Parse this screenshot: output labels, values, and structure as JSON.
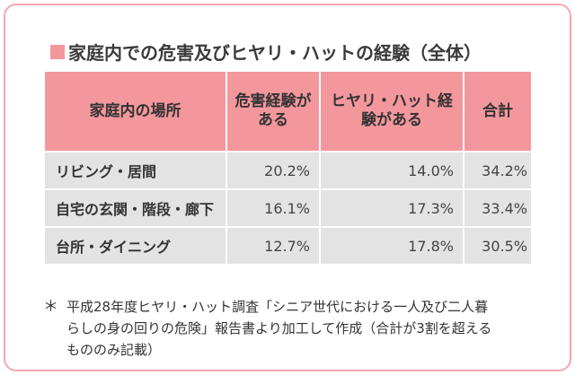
{
  "title": "家庭内での危害及びヒヤリ・ハットの経験（全体）",
  "colors": {
    "accent": "#f4979d",
    "row_bg": "#e3e3e3",
    "frame_border": "#f2a9ae"
  },
  "table": {
    "headers": [
      "家庭内の場所",
      "危害経験がある",
      "ヒヤリ・ハット経験がある",
      "合計"
    ],
    "rows": [
      {
        "place": "リビング・居間",
        "harm": "20.2%",
        "hiyari": "14.0%",
        "total": "34.2%"
      },
      {
        "place": "自宅の玄関・階段・廊下",
        "harm": "16.1%",
        "hiyari": "17.3%",
        "total": "33.4%"
      },
      {
        "place": "台所・ダイニング",
        "harm": "12.7%",
        "hiyari": "17.8%",
        "total": "30.5%"
      }
    ]
  },
  "note": {
    "mark": "＊",
    "text": "平成28年度ヒヤリ・ハット調査「シニア世代における一人及び二人暮らしの身の回りの危険」報告書より加工して作成（合計が3割を超えるもののみ記載）"
  }
}
